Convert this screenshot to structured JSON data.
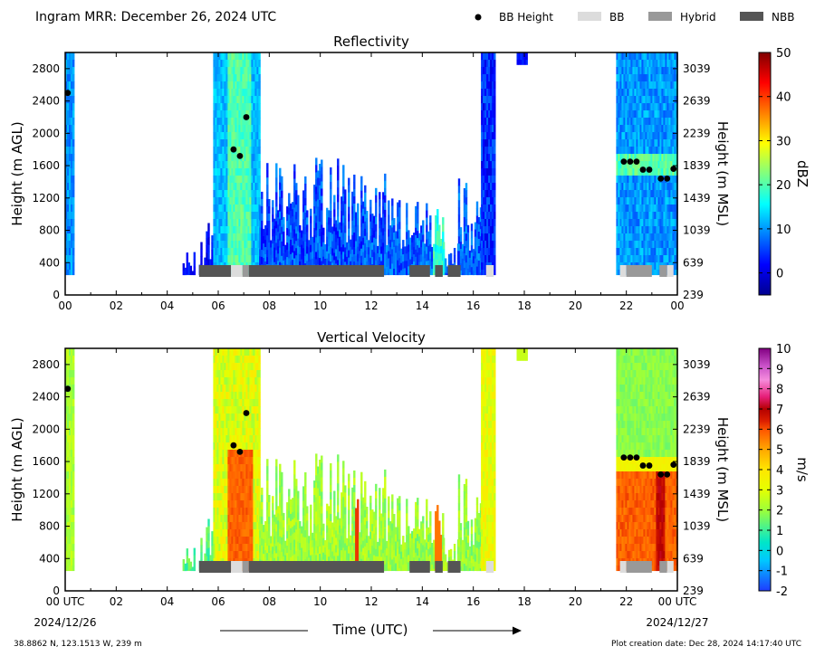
{
  "header": {
    "title": "Ingram MRR:  December 26, 2024 UTC",
    "legend": [
      {
        "label": "BB Height",
        "marker": "dot",
        "color": "#000000"
      },
      {
        "label": "BB",
        "marker": "box",
        "color": "#dcdcdc"
      },
      {
        "label": "Hybrid",
        "marker": "box",
        "color": "#999999"
      },
      {
        "label": "NBB",
        "marker": "box",
        "color": "#555555"
      }
    ]
  },
  "footer": {
    "location": "38.8862 N, 123.1513 W, 239 m",
    "created": "Plot creation date: Dec 28, 2024 14:17:40 UTC",
    "xlabel": "Time (UTC)"
  },
  "chart_data": [
    {
      "type": "heatmap",
      "title": "Reflectivity",
      "ylabel": "Height (m AGL)",
      "y2label": "Height (m MSL)",
      "colorbar_label": "dBZ",
      "colormap": "jet",
      "clim": [
        -5,
        50
      ],
      "colorbar_ticks": [
        "50",
        "40",
        "30",
        "20",
        "10",
        "0"
      ],
      "xlim": [
        0,
        24
      ],
      "ylim": [
        0,
        3000
      ],
      "x_ticks": [
        "00",
        "02",
        "04",
        "06",
        "08",
        "10",
        "12",
        "14",
        "16",
        "18",
        "20",
        "22",
        "00"
      ],
      "y_ticks": [
        "0",
        "400",
        "800",
        "1200",
        "1600",
        "2000",
        "2400",
        "2800"
      ],
      "y2_ticks": [
        "239",
        "639",
        "1039",
        "1439",
        "1839",
        "2239",
        "2639",
        "3039"
      ],
      "bb_height_points": [
        {
          "x": 0.1,
          "y": 2500
        },
        {
          "x": 7.1,
          "y": 2200
        },
        {
          "x": 6.6,
          "y": 1800
        },
        {
          "x": 6.85,
          "y": 1720
        },
        {
          "x": 21.9,
          "y": 1650
        },
        {
          "x": 22.15,
          "y": 1650
        },
        {
          "x": 22.4,
          "y": 1650
        },
        {
          "x": 22.65,
          "y": 1550
        },
        {
          "x": 22.9,
          "y": 1550
        },
        {
          "x": 23.35,
          "y": 1440
        },
        {
          "x": 23.6,
          "y": 1440
        },
        {
          "x": 23.85,
          "y": 1560
        }
      ]
    },
    {
      "type": "heatmap",
      "title": "Vertical Velocity",
      "ylabel": "Height (m AGL)",
      "y2label": "Height (m MSL)",
      "colorbar_label": "m/s",
      "clim": [
        -2,
        10
      ],
      "colorbar_ticks": [
        "10",
        "9",
        "8",
        "7",
        "6",
        "5",
        "4",
        "3",
        "2",
        "1",
        "0",
        "-1",
        "-2"
      ],
      "xlim": [
        0,
        24
      ],
      "ylim": [
        0,
        3000
      ],
      "x_ticks": [
        "00 UTC",
        "02",
        "04",
        "06",
        "08",
        "10",
        "12",
        "14",
        "16",
        "18",
        "20",
        "22",
        "00 UTC"
      ],
      "x_date_start": "2024/12/26",
      "x_date_end": "2024/12/27",
      "y_ticks": [
        "0",
        "400",
        "800",
        "1200",
        "1600",
        "2000",
        "2400",
        "2800"
      ],
      "y2_ticks": [
        "239",
        "639",
        "1039",
        "1439",
        "1839",
        "2239",
        "2639",
        "3039"
      ],
      "bb_height_points": [
        {
          "x": 0.1,
          "y": 2500
        },
        {
          "x": 7.1,
          "y": 2200
        },
        {
          "x": 6.6,
          "y": 1800
        },
        {
          "x": 6.85,
          "y": 1720
        },
        {
          "x": 21.9,
          "y": 1650
        },
        {
          "x": 22.15,
          "y": 1650
        },
        {
          "x": 22.4,
          "y": 1650
        },
        {
          "x": 22.65,
          "y": 1550
        },
        {
          "x": 22.9,
          "y": 1550
        },
        {
          "x": 23.35,
          "y": 1440
        },
        {
          "x": 23.6,
          "y": 1440
        },
        {
          "x": 23.85,
          "y": 1560
        }
      ]
    }
  ],
  "bb_classification": [
    {
      "start": 5.25,
      "end": 6.5,
      "type": "NBB"
    },
    {
      "start": 6.5,
      "end": 6.95,
      "type": "BB"
    },
    {
      "start": 6.95,
      "end": 7.2,
      "type": "Hybrid"
    },
    {
      "start": 7.2,
      "end": 12.5,
      "type": "NBB"
    },
    {
      "start": 13.5,
      "end": 14.3,
      "type": "NBB"
    },
    {
      "start": 14.5,
      "end": 14.8,
      "type": "NBB"
    },
    {
      "start": 15.0,
      "end": 15.5,
      "type": "NBB"
    },
    {
      "start": 16.5,
      "end": 16.8,
      "type": "BB"
    },
    {
      "start": 21.75,
      "end": 22.0,
      "type": "BB"
    },
    {
      "start": 22.0,
      "end": 23.0,
      "type": "Hybrid"
    },
    {
      "start": 23.3,
      "end": 23.6,
      "type": "Hybrid"
    },
    {
      "start": 23.6,
      "end": 23.85,
      "type": "BB"
    }
  ],
  "echo_periods": [
    {
      "start": 0.0,
      "end": 0.3,
      "top": 3000,
      "bottom": 250
    },
    {
      "start": 4.1,
      "end": 4.15,
      "top": 500,
      "bottom": 450
    },
    {
      "start": 4.6,
      "end": 5.3,
      "top": 600,
      "bottom": 250
    },
    {
      "start": 5.3,
      "end": 5.8,
      "top": 900,
      "bottom": 250
    },
    {
      "start": 5.8,
      "end": 7.6,
      "top": 3000,
      "bottom": 250
    },
    {
      "start": 7.6,
      "end": 12.5,
      "top": 1700,
      "bottom": 250
    },
    {
      "start": 12.5,
      "end": 14.8,
      "top": 1200,
      "bottom": 250
    },
    {
      "start": 14.8,
      "end": 15.4,
      "top": 800,
      "bottom": 250
    },
    {
      "start": 15.4,
      "end": 16.3,
      "top": 1500,
      "bottom": 250
    },
    {
      "start": 16.3,
      "end": 16.8,
      "top": 3000,
      "bottom": 250
    },
    {
      "start": 17.7,
      "end": 18.1,
      "top": 3000,
      "bottom": 2850
    },
    {
      "start": 21.6,
      "end": 24.0,
      "top": 3000,
      "bottom": 250
    }
  ]
}
